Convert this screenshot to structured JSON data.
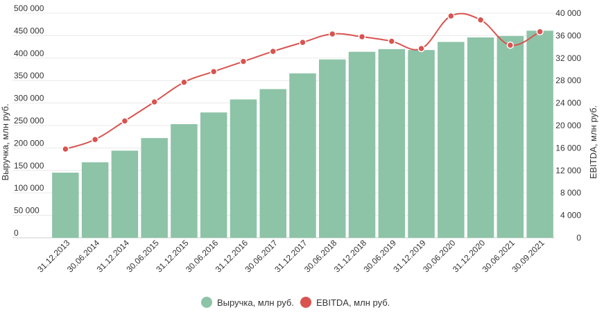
{
  "chart_data": {
    "type": "bar",
    "categories": [
      "31.12.2013",
      "30.06.2014",
      "31.12.2014",
      "30.06.2015",
      "31.12.2015",
      "30.06.2016",
      "31.12.2016",
      "30.06.2017",
      "31.12.2017",
      "30.06.2018",
      "31.12.2018",
      "30.06.2019",
      "31.12.2019",
      "30.06.2020",
      "31.12.2020",
      "30.06.2021",
      "30.09.2021"
    ],
    "series": [
      {
        "name": "Выручка, млн руб.",
        "type": "bar",
        "axis": "left",
        "color": "#8dc3a7",
        "values": [
          145000,
          168000,
          194000,
          222000,
          253000,
          279000,
          308000,
          331000,
          366000,
          397000,
          414000,
          420000,
          418000,
          436000,
          446000,
          449000,
          461000
        ]
      },
      {
        "name": "EBITDA, млн руб.",
        "type": "line",
        "axis": "right",
        "color": "#d9534f",
        "values": [
          15800,
          17500,
          20800,
          24200,
          27700,
          29600,
          31400,
          33200,
          34800,
          36300,
          35800,
          35000,
          33700,
          39500,
          38800,
          34300,
          36700
        ]
      }
    ],
    "yaxis_left": {
      "label": "Выручка, млн руб.",
      "range": [
        0,
        500000
      ],
      "ticks": [
        "0",
        "50 000",
        "100 000",
        "150 000",
        "200 000",
        "250 000",
        "300 000",
        "350 000",
        "400 000",
        "450 000",
        "500 000"
      ]
    },
    "yaxis_right": {
      "label": "EBITDA, млн руб.",
      "range": [
        0,
        40000
      ],
      "ticks": [
        "0",
        "4 000",
        "8 000",
        "12 000",
        "16 000",
        "20 000",
        "24 000",
        "28 000",
        "32 000",
        "36 000",
        "40 000"
      ]
    },
    "grid": true,
    "legend_position": "bottom"
  }
}
